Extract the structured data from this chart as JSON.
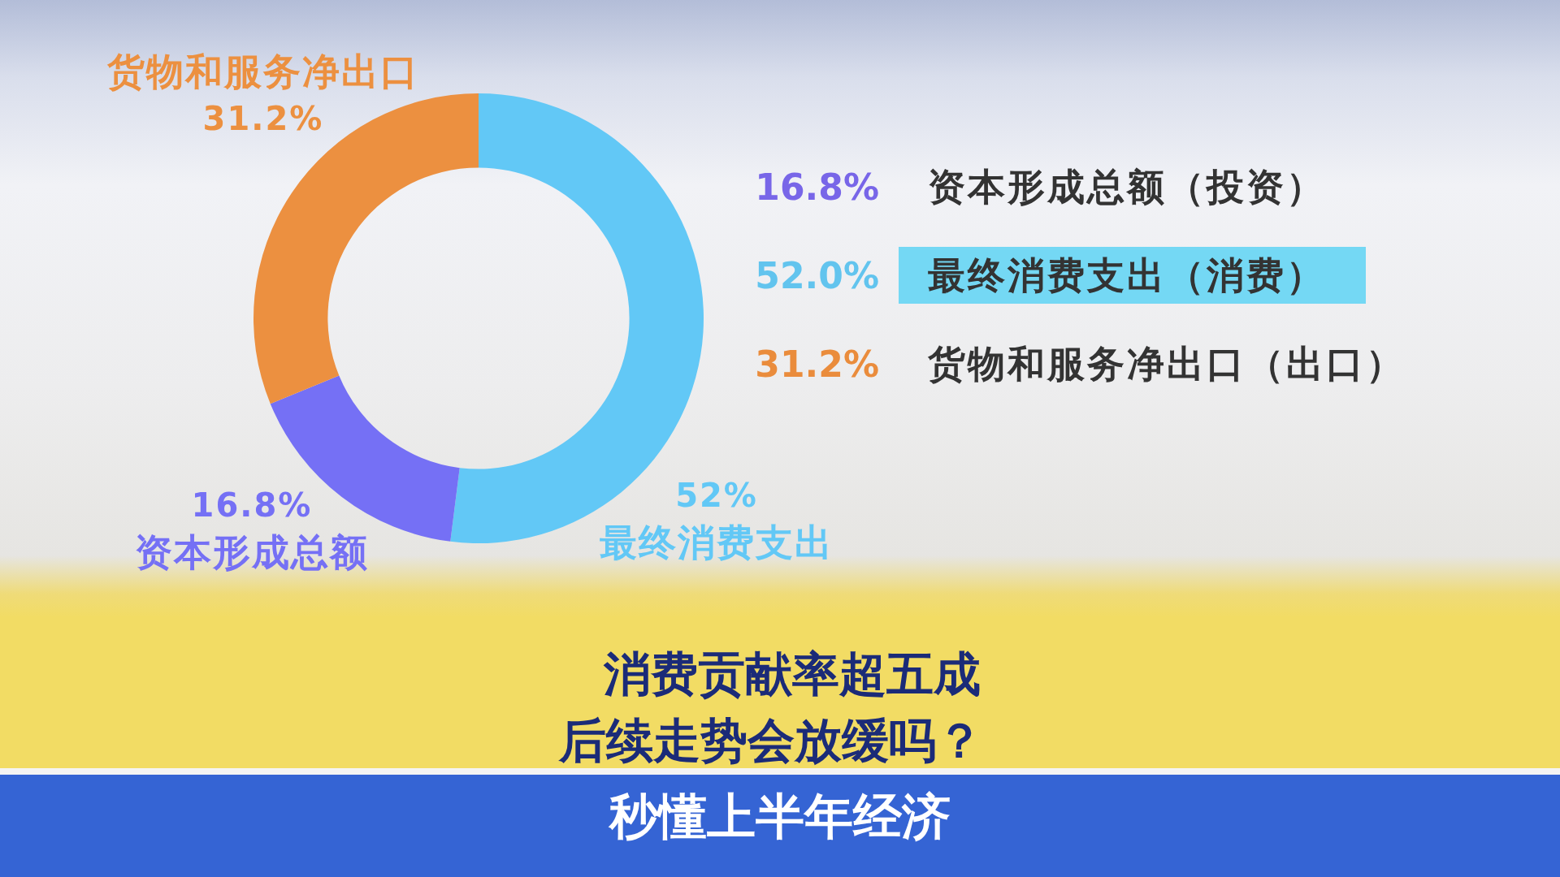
{
  "chart_data": [
    {
      "type": "donut",
      "title": "消费贡献率超五成",
      "subtitle": "后续走势会放缓吗？",
      "annotations": [
        "秒懂上半年经济"
      ],
      "categories": [
        "最终消费支出",
        "资本形成总额",
        "货物和服务净出口"
      ],
      "values": [
        52,
        16.8,
        31.2
      ],
      "colors": [
        "#62c8f6",
        "#7570f5",
        "#ec9040"
      ],
      "value_labels": [
        "52%",
        "16.8%",
        "31.2%"
      ]
    },
    {
      "type": "other",
      "annotations": [
        "16.8%",
        "资本形成总额（投资）",
        "52.0%",
        "最终消费支出（消费）",
        "31.2%",
        "货物和服务净出口（出口）"
      ],
      "colors": [
        "#7866e8",
        "#62c4ee",
        "#ea8c3c"
      ]
    }
  ]
}
